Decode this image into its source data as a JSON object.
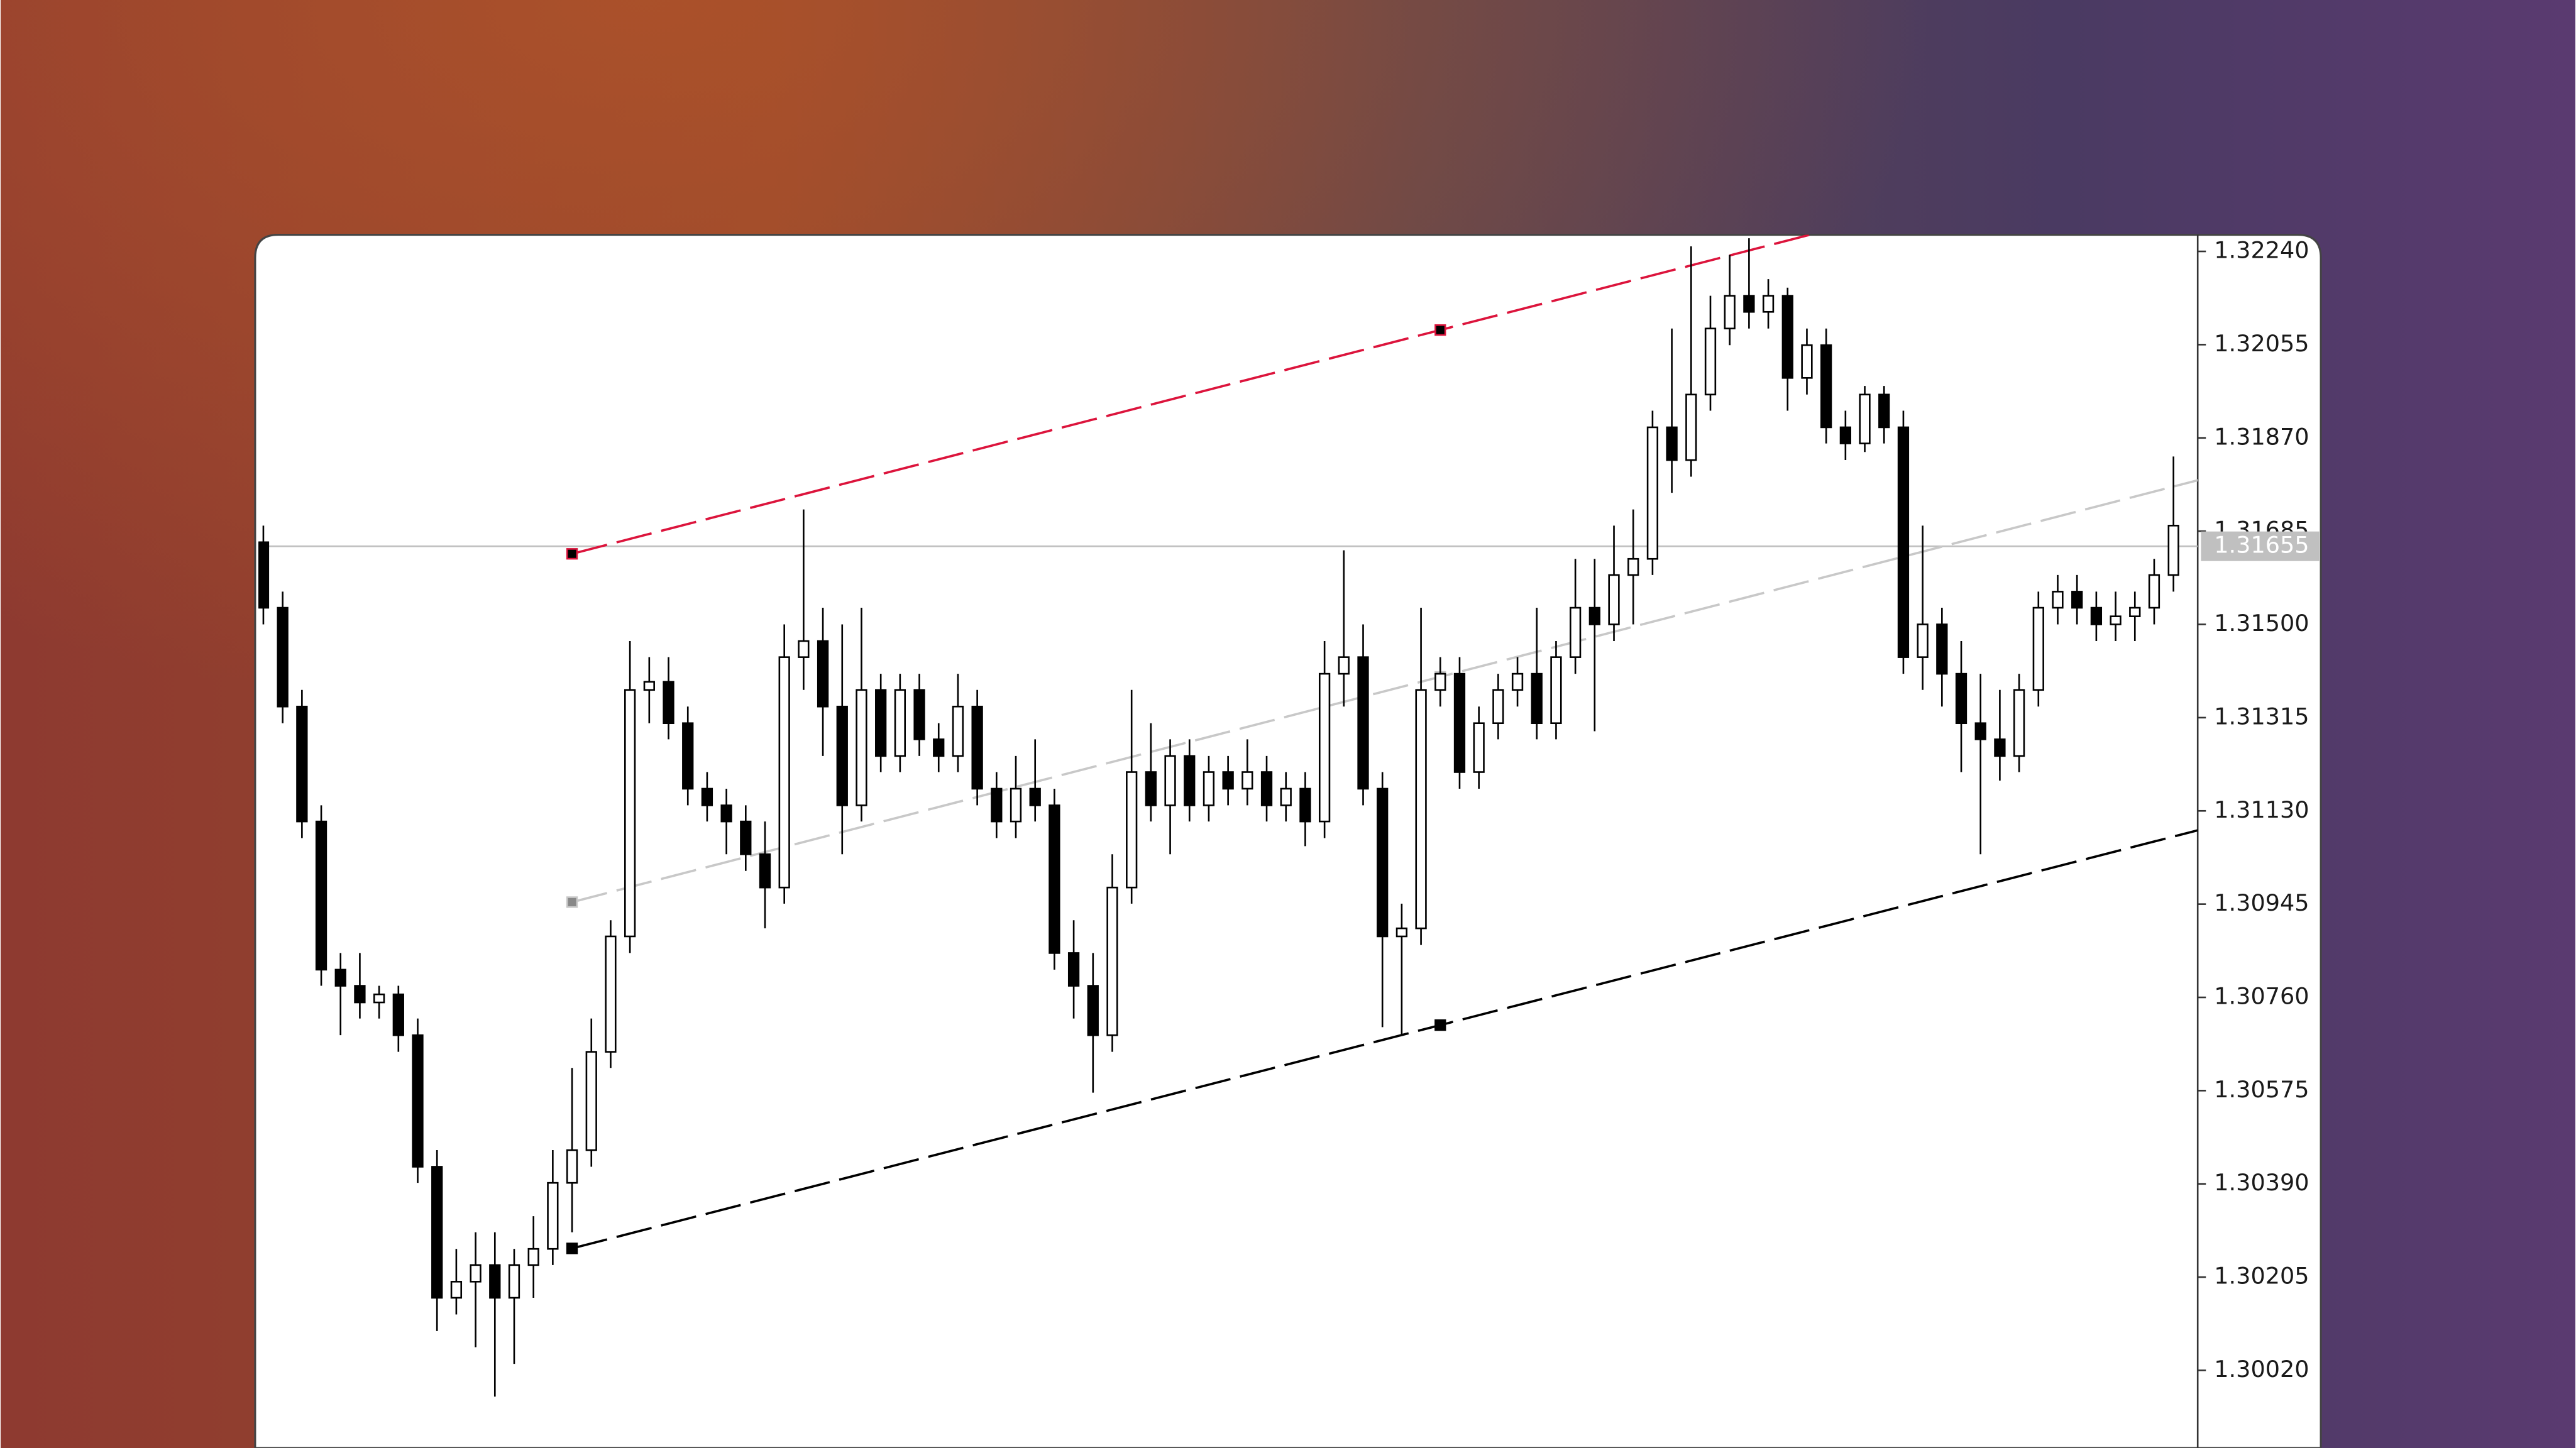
{
  "chart_data": {
    "type": "candlestick",
    "ylim": [
      1.29866,
      1.32273
    ],
    "yticks": [
      {
        "value": 1.3224,
        "label": "1.32240"
      },
      1.32055,
      {
        "value": 1.3187,
        "label": "1.31870"
      },
      1.31685,
      {
        "value": 1.315,
        "label": "1.31500"
      },
      1.31315,
      {
        "value": 1.3113,
        "label": "1.31130"
      },
      1.30945,
      {
        "value": 1.3076,
        "label": "1.30760"
      },
      1.30575,
      {
        "value": 1.3039,
        "label": "1.30390"
      },
      1.30205,
      {
        "value": 1.3002,
        "label": "1.30020"
      }
    ],
    "up_color": "#ffffff",
    "down_color": "#000000",
    "open": [
      1.31663,
      1.31533,
      1.31337,
      1.31109,
      1.30815,
      1.30783,
      1.3075,
      1.30766,
      1.30685,
      1.30424,
      1.30164,
      1.30196,
      1.30229,
      1.30164,
      1.30229,
      1.30261,
      1.30392,
      1.30457,
      1.30652,
      1.30881,
      1.3137,
      1.31386,
      1.31304,
      1.31174,
      1.31141,
      1.31109,
      1.31044,
      1.30978,
      1.31435,
      1.31467,
      1.31337,
      1.31141,
      1.3137,
      1.31239,
      1.3137,
      1.31272,
      1.31239,
      1.31337,
      1.31174,
      1.31109,
      1.31174,
      1.31141,
      1.30848,
      1.30783,
      1.30685,
      1.30978,
      1.31207,
      1.31141,
      1.31239,
      1.31141,
      1.31207,
      1.31174,
      1.31207,
      1.31141,
      1.31174,
      1.31109,
      1.31402,
      1.31435,
      1.31174,
      1.30881,
      1.30897,
      1.3137,
      1.31402,
      1.31207,
      1.31304,
      1.3137,
      1.31402,
      1.31304,
      1.31435,
      1.31533,
      1.315,
      1.31598,
      1.3163,
      1.31891,
      1.31826,
      1.31956,
      1.32087,
      1.32152,
      1.3212,
      1.32152,
      1.31989,
      1.32054,
      1.31891,
      1.31859,
      1.31956,
      1.31891,
      1.31435,
      1.315,
      1.31402,
      1.31304,
      1.31272,
      1.31239,
      1.3137,
      1.31533,
      1.31565,
      1.31533,
      1.315,
      1.31516,
      1.31533,
      1.31598
    ],
    "high": [
      1.31696,
      1.31565,
      1.3137,
      1.31141,
      1.30848,
      1.30848,
      1.30783,
      1.30783,
      1.30718,
      1.30457,
      1.30261,
      1.30294,
      1.30294,
      1.30261,
      1.30326,
      1.30457,
      1.3062,
      1.30718,
      1.30913,
      1.31467,
      1.31435,
      1.31435,
      1.31337,
      1.31207,
      1.31174,
      1.31141,
      1.31109,
      1.315,
      1.31728,
      1.31533,
      1.315,
      1.31533,
      1.31402,
      1.31402,
      1.31402,
      1.31304,
      1.31402,
      1.3137,
      1.31207,
      1.31239,
      1.31272,
      1.31174,
      1.30913,
      1.30848,
      1.31044,
      1.3137,
      1.31304,
      1.31272,
      1.31272,
      1.31239,
      1.31239,
      1.31272,
      1.31239,
      1.31207,
      1.31207,
      1.31467,
      1.31647,
      1.315,
      1.31207,
      1.30946,
      1.31533,
      1.31435,
      1.31435,
      1.31337,
      1.31402,
      1.31435,
      1.31533,
      1.31467,
      1.3163,
      1.3163,
      1.31696,
      1.31728,
      1.31924,
      1.32087,
      1.3225,
      1.32152,
      1.32233,
      1.32266,
      1.32185,
      1.32168,
      1.32087,
      1.32087,
      1.31924,
      1.31973,
      1.31973,
      1.31924,
      1.31696,
      1.31533,
      1.31467,
      1.31402,
      1.3137,
      1.31402,
      1.31565,
      1.31598,
      1.31598,
      1.31565,
      1.31565,
      1.31565,
      1.3163,
      1.31833
    ],
    "low": [
      1.315,
      1.31304,
      1.31076,
      1.30783,
      1.30685,
      1.30718,
      1.30718,
      1.30652,
      1.30392,
      1.30098,
      1.30131,
      1.30066,
      1.29968,
      1.30033,
      1.30164,
      1.30229,
      1.30294,
      1.30424,
      1.3062,
      1.30848,
      1.31304,
      1.31272,
      1.31141,
      1.31109,
      1.31044,
      1.31011,
      1.30897,
      1.30946,
      1.3137,
      1.31239,
      1.31044,
      1.31109,
      1.31207,
      1.31207,
      1.31239,
      1.31207,
      1.31207,
      1.31141,
      1.31076,
      1.31076,
      1.31109,
      1.30815,
      1.30718,
      1.30571,
      1.30652,
      1.30946,
      1.31109,
      1.31044,
      1.31109,
      1.31109,
      1.31141,
      1.31141,
      1.31109,
      1.31109,
      1.3106,
      1.31076,
      1.31337,
      1.31141,
      1.30701,
      1.30685,
      1.30864,
      1.31337,
      1.31174,
      1.31174,
      1.31272,
      1.31337,
      1.31272,
      1.31272,
      1.31402,
      1.31288,
      1.31467,
      1.315,
      1.31598,
      1.31761,
      1.31793,
      1.31924,
      1.32054,
      1.32087,
      1.32087,
      1.31924,
      1.31956,
      1.31859,
      1.31826,
      1.31842,
      1.31859,
      1.31402,
      1.3137,
      1.31337,
      1.31207,
      1.31044,
      1.3119,
      1.31207,
      1.31337,
      1.315,
      1.315,
      1.31467,
      1.31467,
      1.31467,
      1.315,
      1.31565
    ],
    "close": [
      1.31533,
      1.31337,
      1.31109,
      1.30815,
      1.30783,
      1.3075,
      1.30766,
      1.30685,
      1.30424,
      1.30164,
      1.30196,
      1.30229,
      1.30164,
      1.30229,
      1.30261,
      1.30392,
      1.30457,
      1.30652,
      1.30881,
      1.3137,
      1.31386,
      1.31304,
      1.31174,
      1.31141,
      1.31109,
      1.31044,
      1.30978,
      1.31435,
      1.31467,
      1.31337,
      1.31141,
      1.3137,
      1.31239,
      1.3137,
      1.31272,
      1.31239,
      1.31337,
      1.31174,
      1.31109,
      1.31174,
      1.31141,
      1.30848,
      1.30783,
      1.30685,
      1.30978,
      1.31207,
      1.31141,
      1.31239,
      1.31141,
      1.31207,
      1.31174,
      1.31207,
      1.31141,
      1.31174,
      1.31109,
      1.31402,
      1.31435,
      1.31174,
      1.30881,
      1.30897,
      1.3137,
      1.31402,
      1.31207,
      1.31304,
      1.3137,
      1.31402,
      1.31304,
      1.31435,
      1.31533,
      1.315,
      1.31598,
      1.3163,
      1.31891,
      1.31826,
      1.31956,
      1.32087,
      1.32152,
      1.3212,
      1.32152,
      1.31989,
      1.32054,
      1.31891,
      1.31859,
      1.31956,
      1.31891,
      1.31435,
      1.315,
      1.31402,
      1.31304,
      1.31272,
      1.31239,
      1.3137,
      1.31533,
      1.31565,
      1.31533,
      1.315,
      1.31516,
      1.31533,
      1.31598,
      1.31696
    ],
    "current_price": 1.31655,
    "current_price_color": "#c0c0c0",
    "lines": [
      {
        "color": "#dc143c",
        "points": [
          {
            "x": 16,
            "y": 1.3164
          },
          {
            "x": 61,
            "y": 1.32084
          }
        ]
      },
      {
        "color": "#c8c8c8",
        "points": [
          {
            "x": 16,
            "y": 1.30949
          },
          {
            "x": 61,
            "y": 1.31396
          }
        ]
      },
      {
        "color": "#000000",
        "points": [
          {
            "x": 16,
            "y": 1.30262
          },
          {
            "x": 61,
            "y": 1.30705
          }
        ]
      }
    ]
  }
}
